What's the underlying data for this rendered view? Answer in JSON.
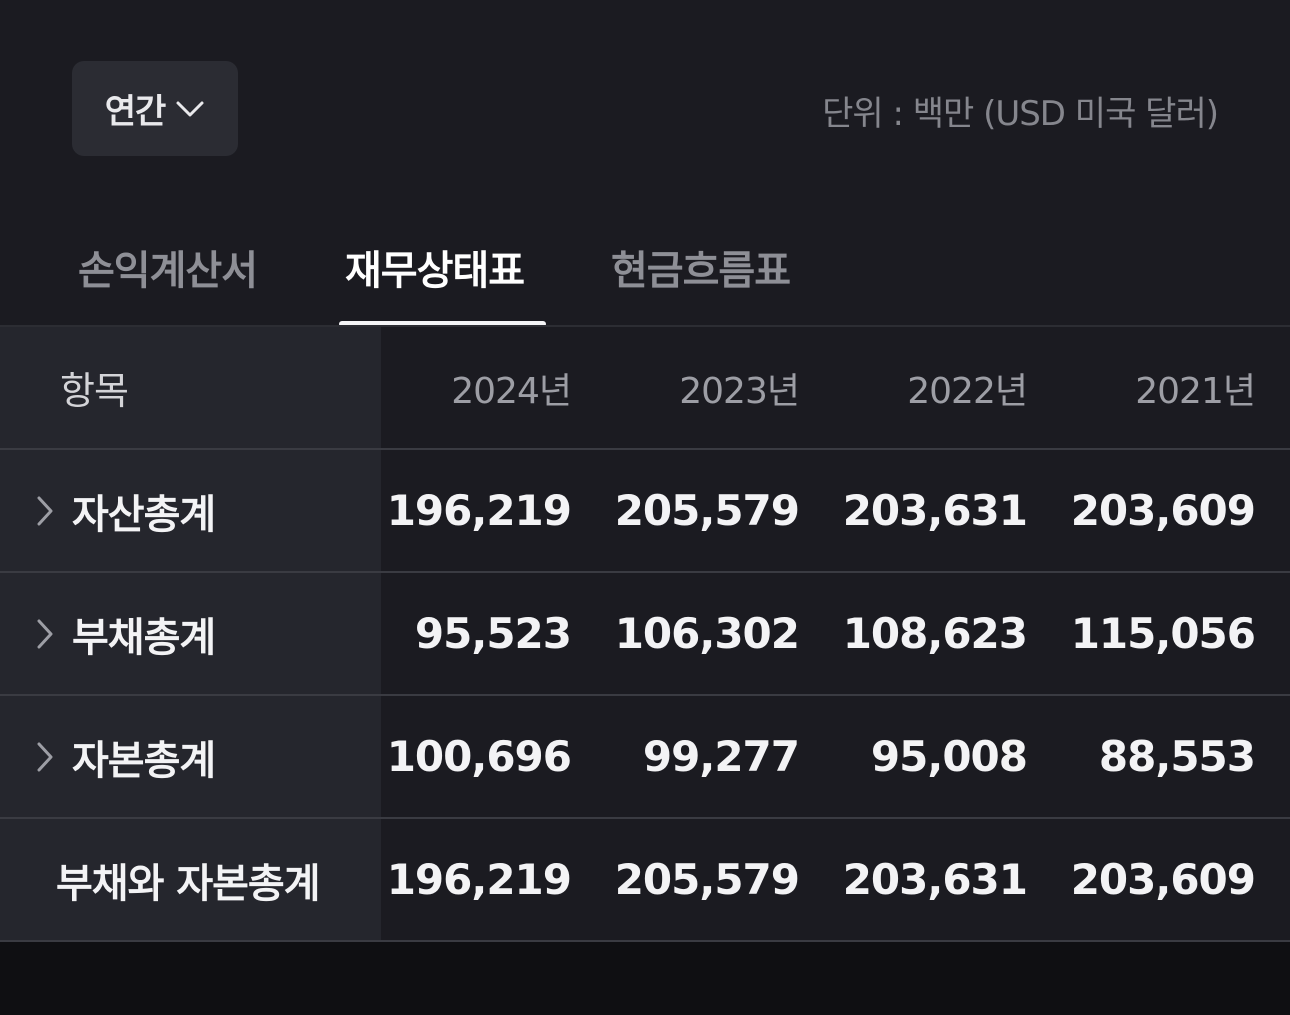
{
  "controls": {
    "period_label": "연간",
    "unit_label": "단위 : 백만 (USD 미국 달러)"
  },
  "tabs": [
    {
      "label": "손익계산서",
      "active": false
    },
    {
      "label": "재무상태표",
      "active": true
    },
    {
      "label": "현금흐름표",
      "active": false
    }
  ],
  "table": {
    "header": {
      "label": "항목",
      "years": [
        "2024년",
        "2023년",
        "2022년",
        "2021년"
      ]
    },
    "rows": [
      {
        "label": "자산총계",
        "expandable": true,
        "values": [
          "196,219",
          "205,579",
          "203,631",
          "203,609"
        ]
      },
      {
        "label": "부채총계",
        "expandable": true,
        "values": [
          "95,523",
          "106,302",
          "108,623",
          "115,056"
        ]
      },
      {
        "label": "자본총계",
        "expandable": true,
        "values": [
          "100,696",
          "99,277",
          "95,008",
          "88,553"
        ]
      },
      {
        "label": "부채와 자본총계",
        "expandable": false,
        "values": [
          "196,219",
          "205,579",
          "203,631",
          "203,609"
        ]
      }
    ]
  },
  "colors": {
    "background": "#1b1b21",
    "label_column": "#25262d",
    "select_bg": "#2b2c33",
    "active_tab": "#ffffff",
    "inactive_tab": "#8e8f96"
  }
}
